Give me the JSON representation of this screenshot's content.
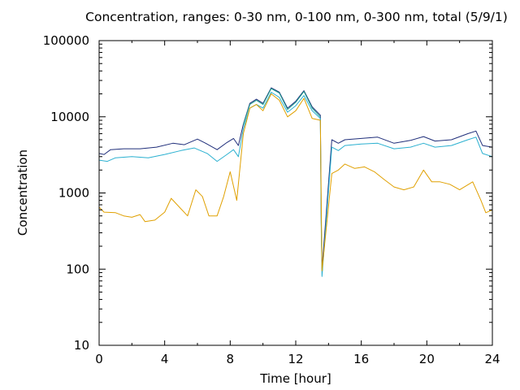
{
  "chart_data": {
    "type": "line",
    "title": "Concentration, ranges: 0-30 nm, 0-100 nm, 0-300 nm, total (5/9/1)",
    "xlabel": "Time [hour]",
    "ylabel": "Concentration",
    "xlim": [
      0,
      24
    ],
    "ylim": [
      10,
      100000
    ],
    "yscale": "log",
    "grid": false,
    "x_ticks": [
      "0",
      "4",
      "8",
      "12",
      "16",
      "20",
      "24"
    ],
    "y_ticks": [
      "10",
      "100",
      "1000",
      "10000",
      "100000"
    ],
    "series": [
      {
        "color": "#1f2e7a",
        "points": [
          [
            0,
            3300
          ],
          [
            0.3,
            3200
          ],
          [
            0.7,
            3700
          ],
          [
            1.5,
            3800
          ],
          [
            2.5,
            3800
          ],
          [
            3.5,
            4000
          ],
          [
            4.5,
            4500
          ],
          [
            5.2,
            4300
          ],
          [
            6,
            5100
          ],
          [
            6.5,
            4500
          ],
          [
            7.2,
            3700
          ],
          [
            7.8,
            4600
          ],
          [
            8.2,
            5200
          ],
          [
            8.5,
            4200
          ],
          [
            8.8,
            8000
          ],
          [
            9.2,
            15000
          ],
          [
            9.6,
            17000
          ],
          [
            10.0,
            15000
          ],
          [
            10.5,
            24000
          ],
          [
            11.0,
            21000
          ],
          [
            11.5,
            13000
          ],
          [
            12.0,
            16000
          ],
          [
            12.5,
            22000
          ],
          [
            13.0,
            13500
          ],
          [
            13.5,
            10500
          ],
          [
            13.55,
            500
          ],
          [
            13.6,
            100
          ],
          [
            14.2,
            5000
          ],
          [
            14.6,
            4500
          ],
          [
            15,
            5000
          ],
          [
            16,
            5200
          ],
          [
            17,
            5400
          ],
          [
            18,
            4500
          ],
          [
            19,
            4900
          ],
          [
            19.8,
            5500
          ],
          [
            20.5,
            4800
          ],
          [
            21.5,
            5000
          ],
          [
            22.5,
            6000
          ],
          [
            23,
            6500
          ],
          [
            23.4,
            4200
          ],
          [
            24,
            4000
          ]
        ]
      },
      {
        "color": "#2ab0d0",
        "points": [
          [
            0,
            2700
          ],
          [
            0.5,
            2600
          ],
          [
            1,
            2900
          ],
          [
            2,
            3000
          ],
          [
            3,
            2900
          ],
          [
            4,
            3200
          ],
          [
            5,
            3600
          ],
          [
            5.8,
            3900
          ],
          [
            6.6,
            3300
          ],
          [
            7.2,
            2600
          ],
          [
            7.8,
            3200
          ],
          [
            8.2,
            3700
          ],
          [
            8.5,
            3000
          ],
          [
            8.8,
            7000
          ],
          [
            9.2,
            13000
          ],
          [
            9.6,
            14500
          ],
          [
            10.0,
            13000
          ],
          [
            10.5,
            21000
          ],
          [
            11.0,
            18000
          ],
          [
            11.5,
            11500
          ],
          [
            12.0,
            14000
          ],
          [
            12.5,
            19000
          ],
          [
            13.0,
            12000
          ],
          [
            13.5,
            9500
          ],
          [
            13.55,
            400
          ],
          [
            13.6,
            80
          ],
          [
            14.2,
            4000
          ],
          [
            14.6,
            3600
          ],
          [
            15,
            4200
          ],
          [
            16,
            4400
          ],
          [
            17,
            4500
          ],
          [
            18,
            3800
          ],
          [
            19,
            4000
          ],
          [
            19.8,
            4500
          ],
          [
            20.5,
            4000
          ],
          [
            21.5,
            4200
          ],
          [
            22.5,
            5000
          ],
          [
            23,
            5400
          ],
          [
            23.4,
            3300
          ],
          [
            24,
            3000
          ]
        ]
      },
      {
        "color": "#20a090",
        "points": [
          [
            8.8,
            7800
          ],
          [
            9.2,
            14500
          ],
          [
            9.6,
            16500
          ],
          [
            10.0,
            14500
          ],
          [
            10.5,
            23500
          ],
          [
            11.0,
            20500
          ],
          [
            11.5,
            12500
          ],
          [
            12.0,
            15500
          ],
          [
            12.5,
            21500
          ],
          [
            13.0,
            13000
          ],
          [
            13.5,
            10000
          ]
        ]
      },
      {
        "color": "#e0a000",
        "points": [
          [
            0,
            650
          ],
          [
            0.3,
            560
          ],
          [
            1,
            550
          ],
          [
            1.5,
            500
          ],
          [
            2,
            480
          ],
          [
            2.5,
            520
          ],
          [
            2.8,
            420
          ],
          [
            3.4,
            440
          ],
          [
            4,
            560
          ],
          [
            4.4,
            850
          ],
          [
            4.9,
            650
          ],
          [
            5.4,
            500
          ],
          [
            5.9,
            1100
          ],
          [
            6.3,
            900
          ],
          [
            6.7,
            500
          ],
          [
            7.2,
            500
          ],
          [
            7.6,
            900
          ],
          [
            8.0,
            1900
          ],
          [
            8.4,
            800
          ],
          [
            8.8,
            6000
          ],
          [
            9.2,
            13000
          ],
          [
            9.6,
            14500
          ],
          [
            10.0,
            12000
          ],
          [
            10.5,
            20000
          ],
          [
            11.0,
            16500
          ],
          [
            11.5,
            10000
          ],
          [
            12.0,
            12000
          ],
          [
            12.5,
            17500
          ],
          [
            13.0,
            9500
          ],
          [
            13.5,
            9000
          ],
          [
            13.6,
            95
          ],
          [
            14.2,
            1800
          ],
          [
            14.6,
            2000
          ],
          [
            15,
            2400
          ],
          [
            15.6,
            2100
          ],
          [
            16.2,
            2200
          ],
          [
            16.8,
            1900
          ],
          [
            17.4,
            1500
          ],
          [
            18,
            1200
          ],
          [
            18.6,
            1100
          ],
          [
            19.2,
            1200
          ],
          [
            19.8,
            2000
          ],
          [
            20.3,
            1400
          ],
          [
            20.8,
            1400
          ],
          [
            21.4,
            1300
          ],
          [
            22,
            1100
          ],
          [
            22.8,
            1400
          ],
          [
            23.3,
            800
          ],
          [
            23.6,
            550
          ],
          [
            24,
            600
          ]
        ]
      }
    ]
  }
}
